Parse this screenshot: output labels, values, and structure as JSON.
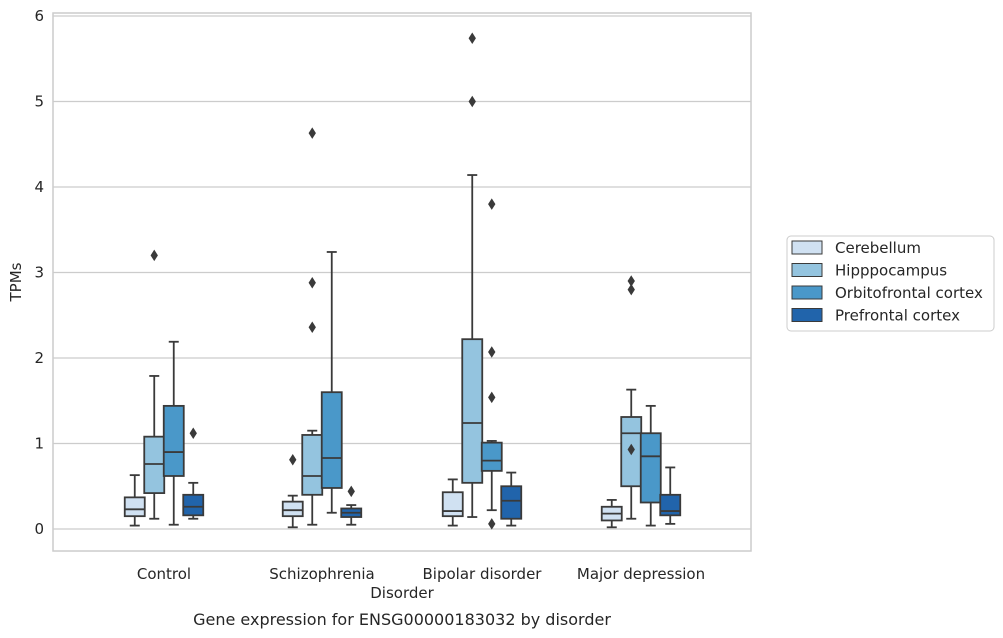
{
  "chart_data": {
    "type": "box",
    "title": "",
    "caption": "Gene expression for ENSG00000183032 by disorder",
    "xlabel": "Disorder",
    "ylabel": "TPMs",
    "ylim": [
      -0.25,
      6.02
    ],
    "yticks": [
      "0",
      "1",
      "2",
      "3",
      "4",
      "5",
      "6"
    ],
    "grid": "horizontal",
    "legend_position": "right",
    "categories": [
      "Control",
      "Schizophrenia",
      "Bipolar disorder",
      "Major depression"
    ],
    "series": [
      {
        "name": "Cerebellum",
        "color": "#d0e1f2",
        "boxes": [
          {
            "low": 0.04,
            "q1": 0.15,
            "median": 0.23,
            "q3": 0.37,
            "high": 0.63,
            "outliers": []
          },
          {
            "low": 0.02,
            "q1": 0.15,
            "median": 0.22,
            "q3": 0.32,
            "high": 0.39,
            "outliers": [
              0.81
            ]
          },
          {
            "low": 0.04,
            "q1": 0.15,
            "median": 0.21,
            "q3": 0.43,
            "high": 0.58,
            "outliers": []
          },
          {
            "low": 0.02,
            "q1": 0.1,
            "median": 0.18,
            "q3": 0.26,
            "high": 0.34,
            "outliers": []
          }
        ]
      },
      {
        "name": "Hipppocampus",
        "color": "#94c4df",
        "boxes": [
          {
            "low": 0.12,
            "q1": 0.42,
            "median": 0.76,
            "q3": 1.08,
            "high": 1.79,
            "outliers": [
              3.2
            ]
          },
          {
            "low": 0.05,
            "q1": 0.4,
            "median": 0.62,
            "q3": 1.1,
            "high": 1.15,
            "outliers": [
              2.36,
              2.88,
              4.63
            ]
          },
          {
            "low": 0.14,
            "q1": 0.54,
            "median": 1.24,
            "q3": 2.22,
            "high": 4.14,
            "outliers": [
              5.0,
              5.74
            ]
          },
          {
            "low": 0.12,
            "q1": 0.5,
            "median": 1.12,
            "q3": 1.31,
            "high": 1.63,
            "outliers": [
              0.93,
              2.8,
              2.9
            ]
          }
        ]
      },
      {
        "name": "Orbitofrontal cortex",
        "color": "#4a98c9",
        "boxes": [
          {
            "low": 0.05,
            "q1": 0.62,
            "median": 0.9,
            "q3": 1.44,
            "high": 2.19,
            "outliers": []
          },
          {
            "low": 0.19,
            "q1": 0.48,
            "median": 0.83,
            "q3": 1.6,
            "high": 3.24,
            "outliers": []
          },
          {
            "low": 0.22,
            "q1": 0.68,
            "median": 0.8,
            "q3": 1.01,
            "high": 1.03,
            "outliers": [
              0.06,
              1.54,
              2.07,
              3.8
            ]
          },
          {
            "low": 0.04,
            "q1": 0.31,
            "median": 0.85,
            "q3": 1.12,
            "high": 1.44,
            "outliers": []
          }
        ]
      },
      {
        "name": "Prefrontal cortex",
        "color": "#2164ab",
        "boxes": [
          {
            "low": 0.12,
            "q1": 0.16,
            "median": 0.26,
            "q3": 0.4,
            "high": 0.54,
            "outliers": [
              1.12
            ]
          },
          {
            "low": 0.05,
            "q1": 0.14,
            "median": 0.19,
            "q3": 0.24,
            "high": 0.28,
            "outliers": [
              0.44
            ]
          },
          {
            "low": 0.04,
            "q1": 0.12,
            "median": 0.33,
            "q3": 0.5,
            "high": 0.66,
            "outliers": []
          },
          {
            "low": 0.06,
            "q1": 0.16,
            "median": 0.21,
            "q3": 0.4,
            "high": 0.72,
            "outliers": []
          }
        ]
      }
    ]
  }
}
